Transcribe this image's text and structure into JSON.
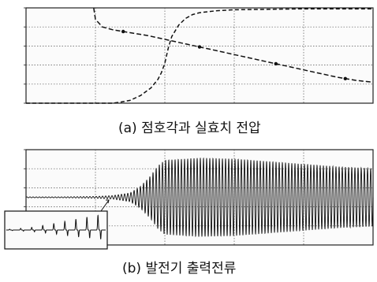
{
  "figure": {
    "caption_a": "(a) 점호각과 실효치 전압",
    "caption_b": "(b) 발전기 출력전류"
  },
  "chart_data": [
    {
      "type": "line",
      "series": [
        {
          "style": "dashed-with-markers",
          "color": "#111111",
          "x": [
            0.195,
            0.2,
            0.22,
            0.25,
            0.3,
            0.35,
            0.4,
            0.45,
            0.5,
            0.55,
            0.6,
            0.65,
            0.7,
            0.75,
            0.8,
            0.85,
            0.9,
            0.95,
            1.0
          ],
          "y": [
            1.0,
            0.88,
            0.8,
            0.77,
            0.74,
            0.71,
            0.67,
            0.63,
            0.59,
            0.55,
            0.51,
            0.47,
            0.43,
            0.39,
            0.35,
            0.31,
            0.27,
            0.24,
            0.22
          ]
        },
        {
          "style": "dashed",
          "color": "#111111",
          "x": [
            0.0,
            0.25,
            0.27,
            0.3,
            0.33,
            0.36,
            0.38,
            0.39,
            0.4,
            0.41,
            0.42,
            0.44,
            0.46,
            0.48,
            0.5,
            0.55,
            0.6,
            0.7,
            0.8,
            0.9,
            1.0
          ],
          "y": [
            0.0,
            0.0,
            0.01,
            0.03,
            0.08,
            0.16,
            0.25,
            0.32,
            0.42,
            0.58,
            0.7,
            0.82,
            0.89,
            0.93,
            0.95,
            0.97,
            0.98,
            0.985,
            0.99,
            0.99,
            0.99
          ]
        }
      ],
      "xlim": [
        0,
        1
      ],
      "ylim": [
        0,
        1
      ],
      "grid": true
    },
    {
      "type": "line",
      "series": [
        {
          "style": "solid-oscillation",
          "color": "#111111",
          "x": [
            0.0,
            0.1,
            0.2,
            0.25,
            0.3,
            0.33,
            0.36,
            0.38,
            0.4,
            0.5,
            0.6,
            0.7,
            0.8,
            0.9,
            1.0
          ],
          "amplitude": [
            0.01,
            0.01,
            0.02,
            0.04,
            0.1,
            0.25,
            0.5,
            0.72,
            0.85,
            0.9,
            0.88,
            0.82,
            0.76,
            0.7,
            0.66
          ]
        }
      ],
      "inset": {
        "series": [
          {
            "x": [
              0.0,
              0.25,
              0.5,
              0.75,
              1.0
            ],
            "amplitude": [
              0.03,
              0.15,
              0.4,
              0.7,
              0.95
            ]
          }
        ]
      },
      "xlim": [
        0,
        1
      ],
      "ylim": [
        -1,
        1
      ],
      "grid": true
    }
  ]
}
